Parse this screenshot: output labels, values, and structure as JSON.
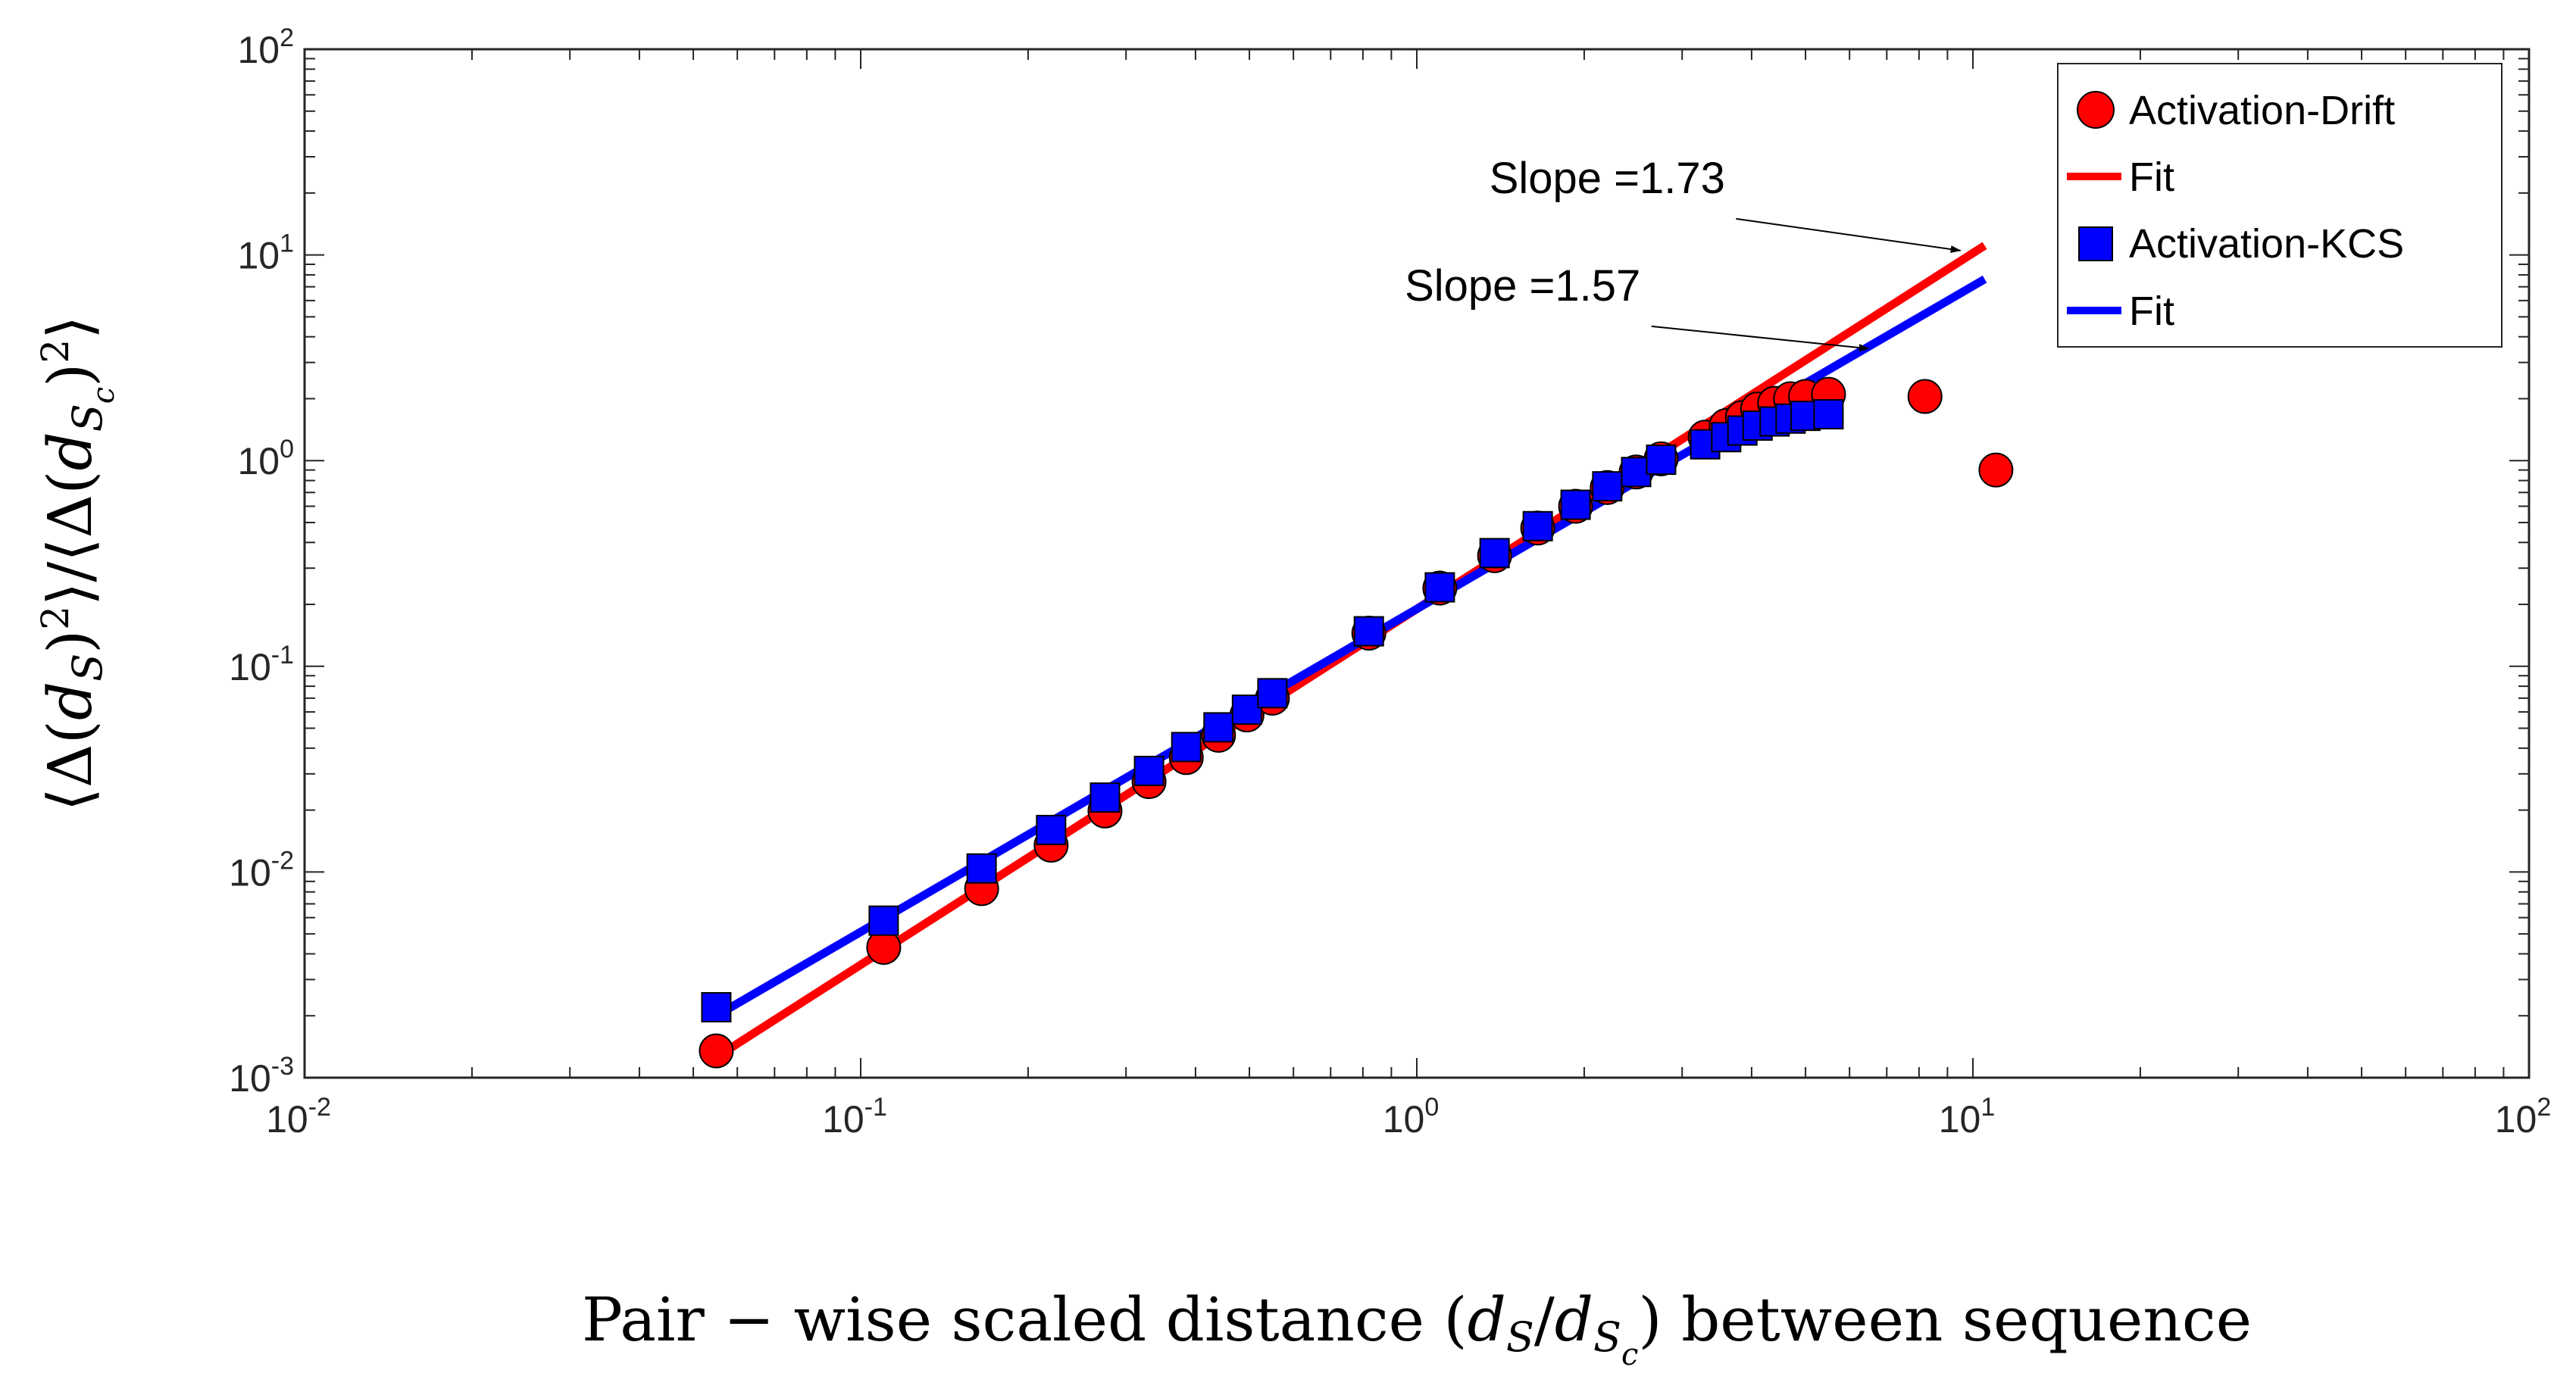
{
  "chart_data": {
    "type": "scatter",
    "xscale": "log",
    "yscale": "log",
    "xlim": [
      0.01,
      100
    ],
    "ylim": [
      0.001,
      100
    ],
    "x_ticks": [
      {
        "base": "10",
        "exp": "-2"
      },
      {
        "base": "10",
        "exp": "-1"
      },
      {
        "base": "10",
        "exp": "0"
      },
      {
        "base": "10",
        "exp": "1"
      },
      {
        "base": "10",
        "exp": "2"
      }
    ],
    "y_ticks": [
      {
        "base": "10",
        "exp": "-3"
      },
      {
        "base": "10",
        "exp": "-2"
      },
      {
        "base": "10",
        "exp": "-1"
      },
      {
        "base": "10",
        "exp": "0"
      },
      {
        "base": "10",
        "exp": "1"
      },
      {
        "base": "10",
        "exp": "2"
      }
    ],
    "xlabel": {
      "main": "Pair − wise scaled distance (",
      "d": "d",
      "s": "S",
      "slash": "/",
      "d2": "d",
      "s2": "S",
      "c": "c",
      "end": ") between sequence"
    },
    "ylabel": {
      "open": "⟨",
      "delta": "Δ",
      "paren": "(",
      "d": "d",
      "s": "S",
      "close": ")",
      "sq": "2",
      "mid": "⟩/⟨",
      "delta2": "Δ",
      "paren2": "(",
      "d2": "d",
      "s2": "S",
      "c": "c",
      "close2": ")",
      "sq2": "2",
      "end": "⟩"
    },
    "series": [
      {
        "name": "Activation-Drift",
        "marker": "circle",
        "color": "#ff0000",
        "x": [
          0.055,
          0.11,
          0.165,
          0.22,
          0.275,
          0.33,
          0.385,
          0.44,
          0.495,
          0.55,
          0.82,
          1.1,
          1.38,
          1.65,
          1.93,
          2.2,
          2.48,
          2.75,
          3.3,
          3.6,
          3.85,
          4.1,
          4.4,
          4.7,
          5.0,
          5.5,
          8.2,
          11.0
        ],
        "y": [
          0.00135,
          0.0043,
          0.0083,
          0.0135,
          0.0198,
          0.0275,
          0.036,
          0.0462,
          0.058,
          0.07,
          0.145,
          0.24,
          0.345,
          0.47,
          0.6,
          0.74,
          0.88,
          1.02,
          1.3,
          1.48,
          1.62,
          1.78,
          1.9,
          2.0,
          2.05,
          2.1,
          2.05,
          0.9
        ]
      },
      {
        "name": "Activation-KCS",
        "marker": "square",
        "color": "#0000ff",
        "x": [
          0.055,
          0.11,
          0.165,
          0.22,
          0.275,
          0.33,
          0.385,
          0.44,
          0.495,
          0.55,
          0.82,
          1.1,
          1.38,
          1.65,
          1.93,
          2.2,
          2.48,
          2.75,
          3.3,
          3.6,
          3.85,
          4.1,
          4.4,
          4.7,
          5.0,
          5.5
        ],
        "y": [
          0.0022,
          0.0058,
          0.0104,
          0.016,
          0.023,
          0.031,
          0.0405,
          0.0505,
          0.0615,
          0.074,
          0.148,
          0.242,
          0.355,
          0.48,
          0.61,
          0.75,
          0.88,
          1.01,
          1.2,
          1.3,
          1.4,
          1.48,
          1.55,
          1.6,
          1.65,
          1.68
        ]
      }
    ],
    "fits": [
      {
        "name": "Fit",
        "color": "#ff0000",
        "slope": 1.73,
        "intercept_at_1": 0.19,
        "x_range": [
          0.055,
          10.5
        ]
      },
      {
        "name": "Fit",
        "color": "#0000ff",
        "slope": 1.57,
        "intercept_at_1": 0.19,
        "x_range": [
          0.055,
          10.5
        ]
      }
    ],
    "legend": {
      "placement": "top-right",
      "entries": [
        "Activation-Drift",
        "Fit",
        "Activation-KCS",
        "Fit"
      ]
    },
    "annotations": [
      {
        "text": "Slope =1.73",
        "points_to_x": 9.5,
        "points_to_y": 10.5,
        "label_x": 2.2,
        "label_y": 20
      },
      {
        "text": "Slope =1.57",
        "points_to_x": 6.5,
        "points_to_y": 3.5,
        "label_x": 1.55,
        "label_y": 6
      }
    ]
  }
}
